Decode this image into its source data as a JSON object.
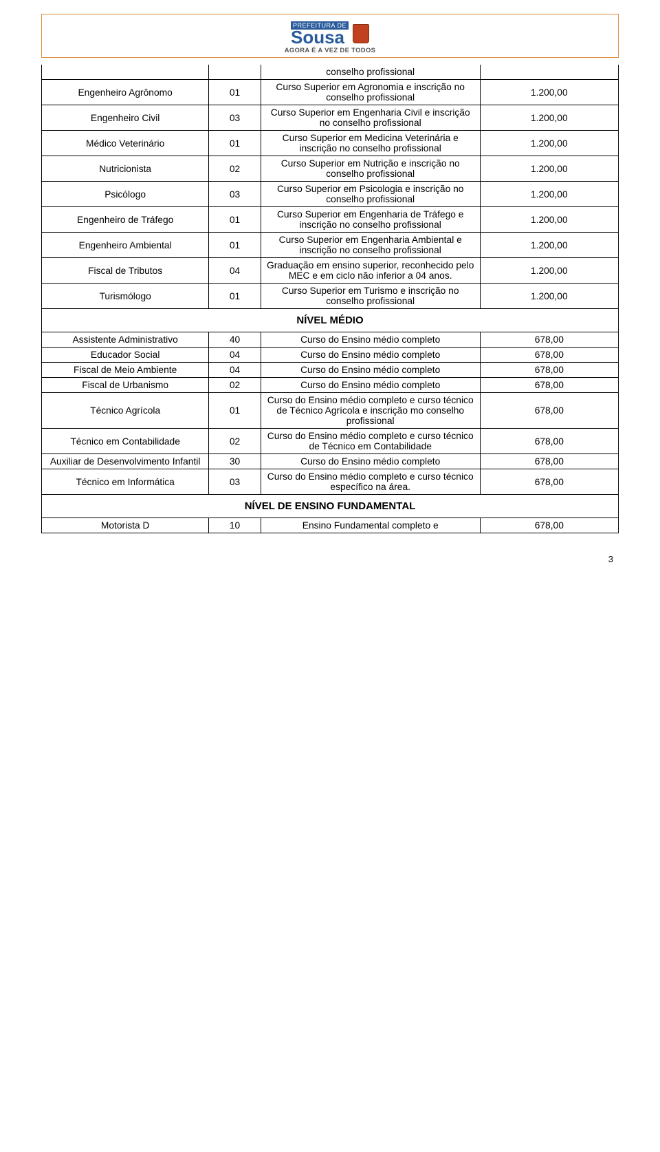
{
  "logo": {
    "prefix": "PREFEITURA DE",
    "name": "Sousa",
    "tagline": "AGORA É A VEZ DE TODOS"
  },
  "colors": {
    "border": "#000000",
    "logo_border": "#dc8c3c",
    "logo_blue": "#2a5c9c",
    "logo_red": "#c04020"
  },
  "table1_top_desc": "conselho profissional",
  "table1": [
    {
      "cargo": "Engenheiro Agrônomo",
      "vagas": "01",
      "req": "Curso Superior em Agronomia e inscrição no conselho profissional",
      "sal": "1.200,00"
    },
    {
      "cargo": "Engenheiro Civil",
      "vagas": "03",
      "req": "Curso Superior em Engenharia Civil e inscrição no conselho profissional",
      "sal": "1.200,00"
    },
    {
      "cargo": "Médico Veterinário",
      "vagas": "01",
      "req": "Curso Superior em Medicina Veterinária e inscrição no conselho profissional",
      "sal": "1.200,00"
    },
    {
      "cargo": "Nutricionista",
      "vagas": "02",
      "req": "Curso Superior em Nutrição e inscrição no conselho profissional",
      "sal": "1.200,00"
    },
    {
      "cargo": "Psicólogo",
      "vagas": "03",
      "req": "Curso Superior em Psicologia e inscrição no conselho profissional",
      "sal": "1.200,00"
    },
    {
      "cargo": "Engenheiro de Tráfego",
      "vagas": "01",
      "req": "Curso Superior em Engenharia de Tráfego e inscrição no conselho profissional",
      "sal": "1.200,00"
    },
    {
      "cargo": "Engenheiro Ambiental",
      "vagas": "01",
      "req": "Curso Superior em Engenharia Ambiental e inscrição no conselho profissional",
      "sal": "1.200,00"
    },
    {
      "cargo": "Fiscal de Tributos",
      "vagas": "04",
      "req": "Graduação em ensino superior, reconhecido pelo MEC e em ciclo não inferior a 04 anos.",
      "sal": "1.200,00"
    },
    {
      "cargo": "Turismólogo",
      "vagas": "01",
      "req": "Curso Superior em Turismo e inscrição no conselho profissional",
      "sal": "1.200,00"
    }
  ],
  "section_medio": "NÍVEL MÉDIO",
  "table2": [
    {
      "cargo": "Assistente Administrativo",
      "vagas": "40",
      "req": "Curso do Ensino médio completo",
      "sal": "678,00"
    },
    {
      "cargo": "Educador Social",
      "vagas": "04",
      "req": "Curso do Ensino médio completo",
      "sal": "678,00"
    },
    {
      "cargo": "Fiscal de Meio Ambiente",
      "vagas": "04",
      "req": "Curso do Ensino médio completo",
      "sal": "678,00"
    },
    {
      "cargo": "Fiscal de Urbanismo",
      "vagas": "02",
      "req": "Curso do Ensino médio completo",
      "sal": "678,00"
    },
    {
      "cargo": "Técnico Agrícola",
      "vagas": "01",
      "req": "Curso do Ensino médio completo e curso técnico de Técnico Agrícola e inscrição mo conselho profissional",
      "sal": "678,00"
    },
    {
      "cargo": "Técnico em Contabilidade",
      "vagas": "02",
      "req": "Curso do Ensino médio completo e curso técnico de Técnico em Contabilidade",
      "sal": "678,00"
    },
    {
      "cargo": "Auxiliar de Desenvolvimento Infantil",
      "vagas": "30",
      "req": "Curso do Ensino médio completo",
      "sal": "678,00"
    },
    {
      "cargo": "Técnico em Informática",
      "vagas": "03",
      "req": "Curso do Ensino médio completo e curso técnico específico na área.",
      "sal": "678,00"
    }
  ],
  "section_fund": "NÍVEL DE ENSINO FUNDAMENTAL",
  "table3": [
    {
      "cargo": "Motorista D",
      "vagas": "10",
      "req": "Ensino Fundamental completo e",
      "sal": "678,00"
    }
  ],
  "page_number": "3"
}
